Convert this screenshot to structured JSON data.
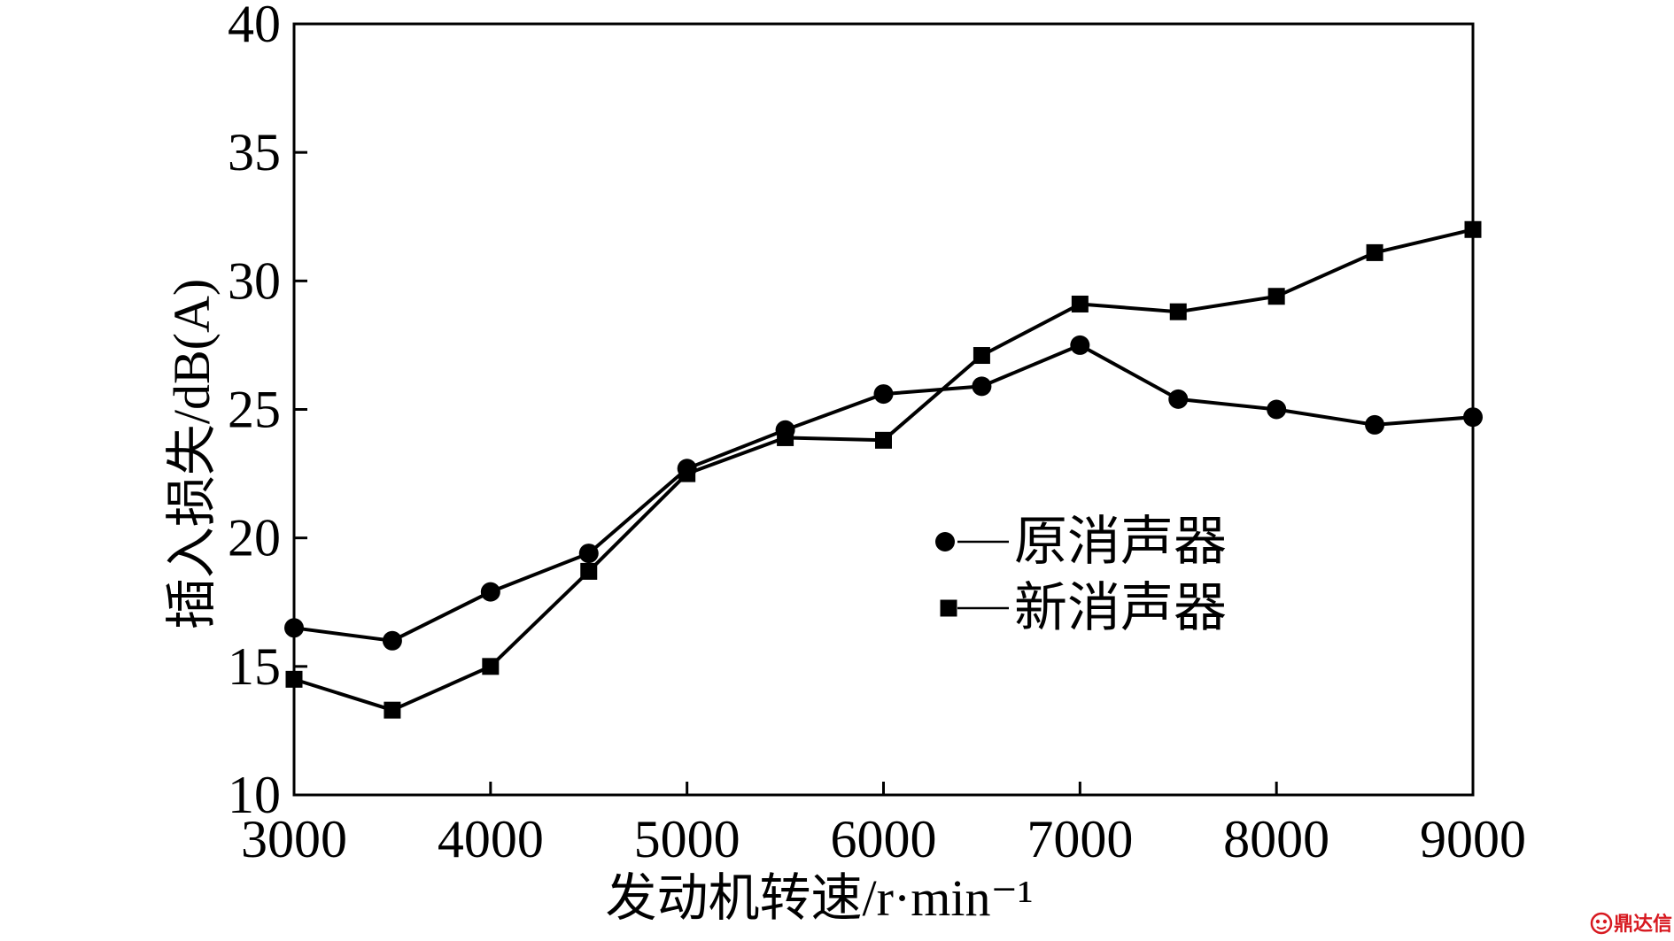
{
  "chart_data": {
    "type": "line",
    "xlabel": "发动机转速/r·min⁻¹",
    "ylabel": "插入损失/dB(A)",
    "x": [
      3000,
      3500,
      4000,
      4500,
      5000,
      5500,
      6000,
      6500,
      7000,
      7500,
      8000,
      8500,
      9000
    ],
    "xlim": [
      3000,
      9000
    ],
    "ylim": [
      10,
      40
    ],
    "x_ticks": [
      3000,
      4000,
      5000,
      6000,
      7000,
      8000,
      9000
    ],
    "y_ticks": [
      10,
      15,
      20,
      25,
      30,
      35,
      40
    ],
    "grid": false,
    "legend_position": "center-right",
    "series": [
      {
        "name": "原消声器",
        "marker": "circle",
        "color": "#000000",
        "values": [
          16.5,
          16.0,
          17.9,
          19.4,
          22.7,
          24.2,
          25.6,
          25.9,
          27.5,
          25.4,
          25.0,
          24.4,
          24.7
        ]
      },
      {
        "name": "新消声器",
        "marker": "square",
        "color": "#000000",
        "values": [
          14.5,
          13.3,
          15.0,
          18.7,
          22.5,
          23.9,
          23.8,
          27.1,
          29.1,
          28.8,
          29.4,
          31.1,
          32.0
        ]
      }
    ]
  },
  "watermark": {
    "text": "鼎达信",
    "color": "#d71920",
    "icon": "dingdaxin-logo-icon"
  }
}
